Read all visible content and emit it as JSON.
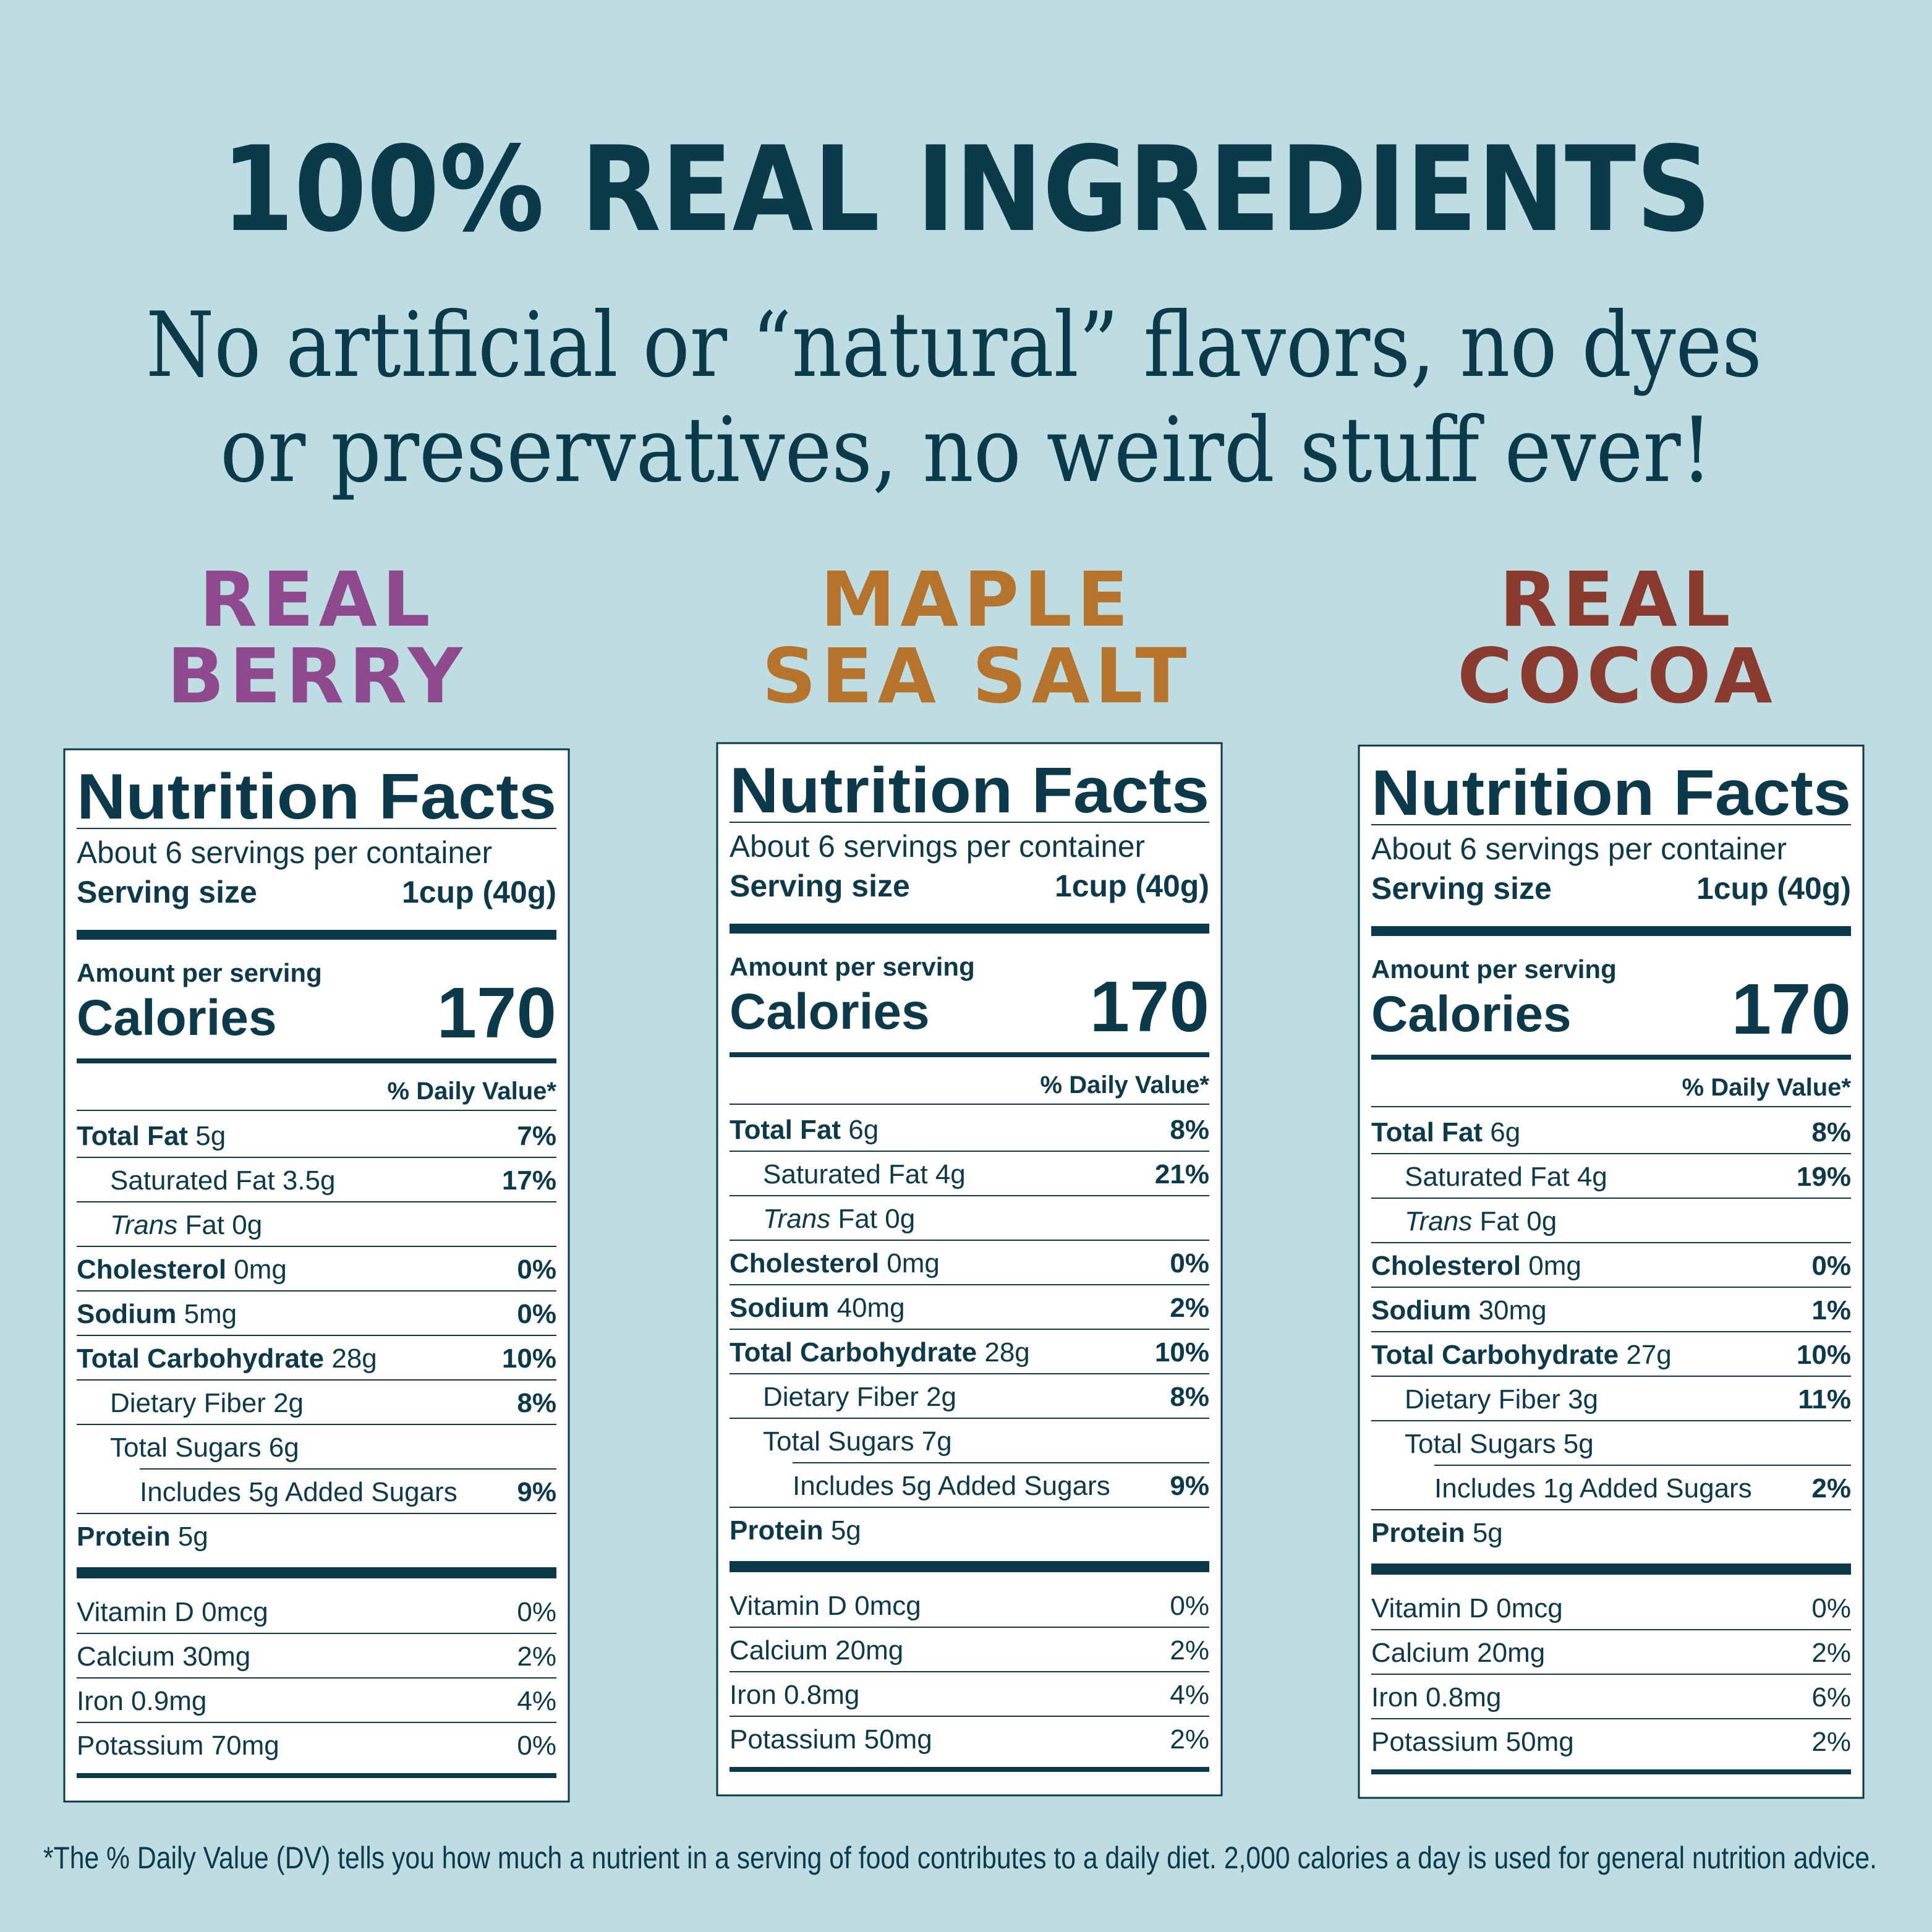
{
  "header": {
    "title": "100% REAL INGREDIENTS",
    "subtitle": [
      "No artificial or “natural” flavors, no dyes",
      "or preservatives, no weird stuff ever!"
    ]
  },
  "products": [
    {
      "name": [
        "REAL",
        "BERRY"
      ],
      "color": "#8e4a8c",
      "label": {
        "title": "Nutrition Facts",
        "servings": "About 6 servings per container",
        "serving_size_label": "Serving size",
        "serving_size": "1cup (40g)",
        "amount_per_serving": "Amount per serving",
        "calories_label": "Calories",
        "calories": "170",
        "daily_value_header": "% Daily Value*",
        "nutrients": [
          {
            "name": "Total Fat",
            "amount": "5g",
            "dv": "7%"
          },
          {
            "name": "Saturated Fat 3.5g",
            "dv": "17%"
          },
          {
            "italic": "Trans",
            "name": "Fat 0g"
          },
          {
            "name": "Cholesterol",
            "amount": "0mg",
            "dv": "0%"
          },
          {
            "name": "Sodium",
            "amount": "5mg",
            "dv": "0%"
          },
          {
            "name": "Total Carbohydrate",
            "amount": "28g",
            "dv": "10%"
          },
          {
            "name": "Dietary Fiber 2g",
            "dv": "8%"
          },
          {
            "name": "Total Sugars 6g"
          },
          {
            "name": "Includes 5g Added Sugars",
            "dv": "9%"
          },
          {
            "name": "Protein",
            "amount": "5g"
          }
        ],
        "vitamins": [
          {
            "name": "Vitamin D 0mcg",
            "dv": "0%"
          },
          {
            "name": "Calcium 30mg",
            "dv": "2%"
          },
          {
            "name": "Iron 0.9mg",
            "dv": "4%"
          },
          {
            "name": "Potassium 70mg",
            "dv": "0%"
          }
        ]
      }
    },
    {
      "name": [
        "MAPLE",
        "SEA SALT"
      ],
      "color": "#b5732b",
      "label": {
        "title": "Nutrition Facts",
        "servings": "About 6 servings per container",
        "serving_size_label": "Serving size",
        "serving_size": "1cup (40g)",
        "amount_per_serving": "Amount per serving",
        "calories_label": "Calories",
        "calories": "170",
        "daily_value_header": "% Daily Value*",
        "nutrients": [
          {
            "name": "Total Fat",
            "amount": "6g",
            "dv": "8%"
          },
          {
            "name": "Saturated Fat 4g",
            "dv": "21%"
          },
          {
            "italic": "Trans",
            "name": "Fat 0g"
          },
          {
            "name": "Cholesterol",
            "amount": "0mg",
            "dv": "0%"
          },
          {
            "name": "Sodium",
            "amount": "40mg",
            "dv": "2%"
          },
          {
            "name": "Total Carbohydrate",
            "amount": "28g",
            "dv": "10%"
          },
          {
            "name": "Dietary Fiber 2g",
            "dv": "8%"
          },
          {
            "name": "Total Sugars 7g"
          },
          {
            "name": "Includes 5g Added Sugars",
            "dv": "9%"
          },
          {
            "name": "Protein",
            "amount": "5g"
          }
        ],
        "vitamins": [
          {
            "name": "Vitamin D 0mcg",
            "dv": "0%"
          },
          {
            "name": "Calcium 20mg",
            "dv": "2%"
          },
          {
            "name": "Iron 0.8mg",
            "dv": "4%"
          },
          {
            "name": "Potassium 50mg",
            "dv": "2%"
          }
        ]
      }
    },
    {
      "name": [
        "REAL",
        "COCOA"
      ],
      "color": "#8a3a2e",
      "label": {
        "title": "Nutrition Facts",
        "servings": "About 6 servings per container",
        "serving_size_label": "Serving size",
        "serving_size": "1cup (40g)",
        "amount_per_serving": "Amount per serving",
        "calories_label": "Calories",
        "calories": "170",
        "daily_value_header": "% Daily Value*",
        "nutrients": [
          {
            "name": "Total Fat",
            "amount": "6g",
            "dv": "8%"
          },
          {
            "name": "Saturated Fat 4g",
            "dv": "19%"
          },
          {
            "italic": "Trans",
            "name": "Fat 0g"
          },
          {
            "name": "Cholesterol",
            "amount": "0mg",
            "dv": "0%"
          },
          {
            "name": "Sodium",
            "amount": "30mg",
            "dv": "1%"
          },
          {
            "name": "Total Carbohydrate",
            "amount": "27g",
            "dv": "10%"
          },
          {
            "name": "Dietary Fiber 3g",
            "dv": "11%"
          },
          {
            "name": "Total Sugars 5g"
          },
          {
            "name": "Includes 1g Added Sugars",
            "dv": "2%"
          },
          {
            "name": "Protein",
            "amount": "5g"
          }
        ],
        "vitamins": [
          {
            "name": "Vitamin D 0mcg",
            "dv": "0%"
          },
          {
            "name": "Calcium 20mg",
            "dv": "2%"
          },
          {
            "name": "Iron 0.8mg",
            "dv": "6%"
          },
          {
            "name": "Potassium 50mg",
            "dv": "2%"
          }
        ]
      }
    }
  ],
  "footnote": "*The % Daily Value (DV) tells you how much a nutrient in a serving of food contributes to a daily diet. 2,000 calories a day is used for general nutrition advice."
}
